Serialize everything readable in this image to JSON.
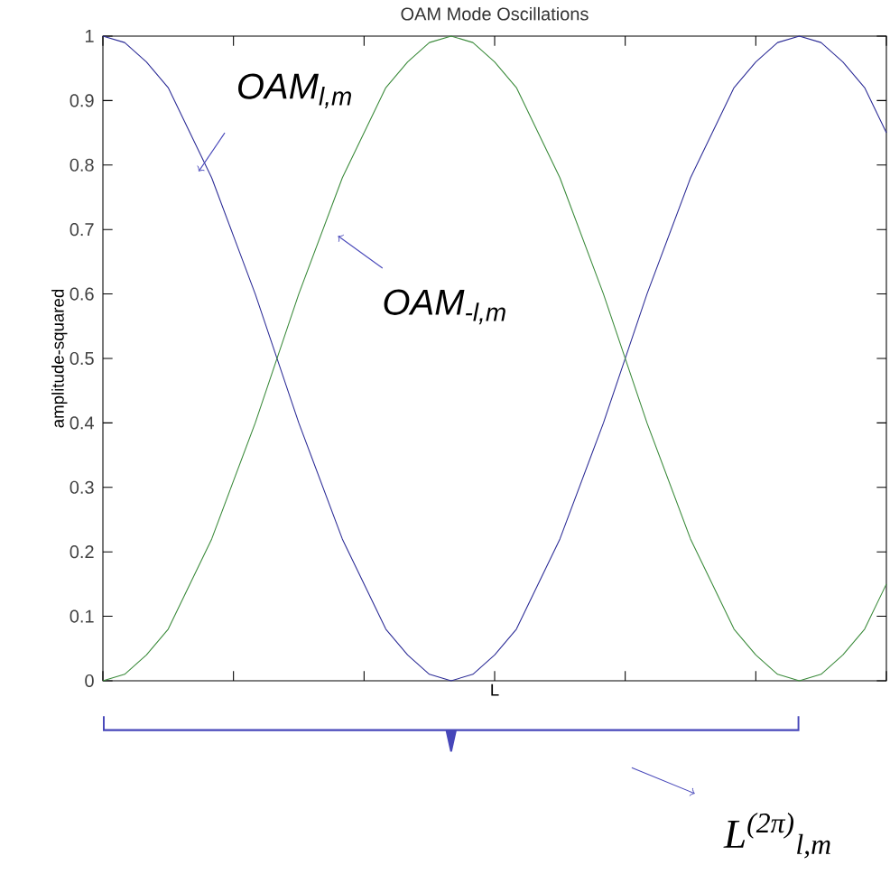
{
  "chart_data": {
    "type": "line",
    "title": "OAM Mode Oscillations",
    "xlabel": "L",
    "ylabel": "amplitude-squared",
    "categories": [
      null,
      null,
      null,
      null,
      null,
      null,
      null,
      null,
      null,
      null,
      null,
      null,
      null,
      null,
      null,
      null,
      null,
      null,
      null,
      null,
      null,
      null,
      null,
      null,
      null,
      null,
      null,
      null,
      null,
      null,
      null,
      null,
      null,
      null,
      null,
      null,
      null
    ],
    "series": [
      {
        "color": "#2b2b96",
        "values": [
          1,
          0.99,
          0.96,
          0.92,
          0.85,
          0.78,
          0.69,
          0.6,
          0.5,
          0.4,
          0.31,
          0.22,
          0.15,
          0.08,
          0.04,
          0.01,
          0,
          0.01,
          0.04,
          0.08,
          0.15,
          0.22,
          0.31,
          0.4,
          0.5,
          0.6,
          0.69,
          0.78,
          0.85,
          0.92,
          0.96,
          0.99,
          1,
          0.99,
          0.96,
          0.92,
          0.85
        ]
      },
      {
        "color": "#3a8a3a",
        "values": [
          0,
          0.01,
          0.04,
          0.08,
          0.15,
          0.22,
          0.31,
          0.4,
          0.5,
          0.6,
          0.69,
          0.78,
          0.85,
          0.92,
          0.96,
          0.99,
          1,
          0.99,
          0.96,
          0.92,
          0.85,
          0.78,
          0.69,
          0.6,
          0.5,
          0.4,
          0.31,
          0.22,
          0.15,
          0.08,
          0.04,
          0.01,
          0,
          0.01,
          0.04,
          0.08,
          0.15
        ]
      }
    ],
    "ylim": [
      0,
      1
    ],
    "yticks": [
      0,
      0.1,
      0.2,
      0.3,
      0.4,
      0.5,
      0.6,
      0.7,
      0.8,
      0.9,
      1
    ],
    "grid": false,
    "annotations": [
      "OAM$_{l,m}$",
      "OAM$_{-l,m}$",
      "L$^{(2π)}$$_{l,m}$"
    ]
  }
}
